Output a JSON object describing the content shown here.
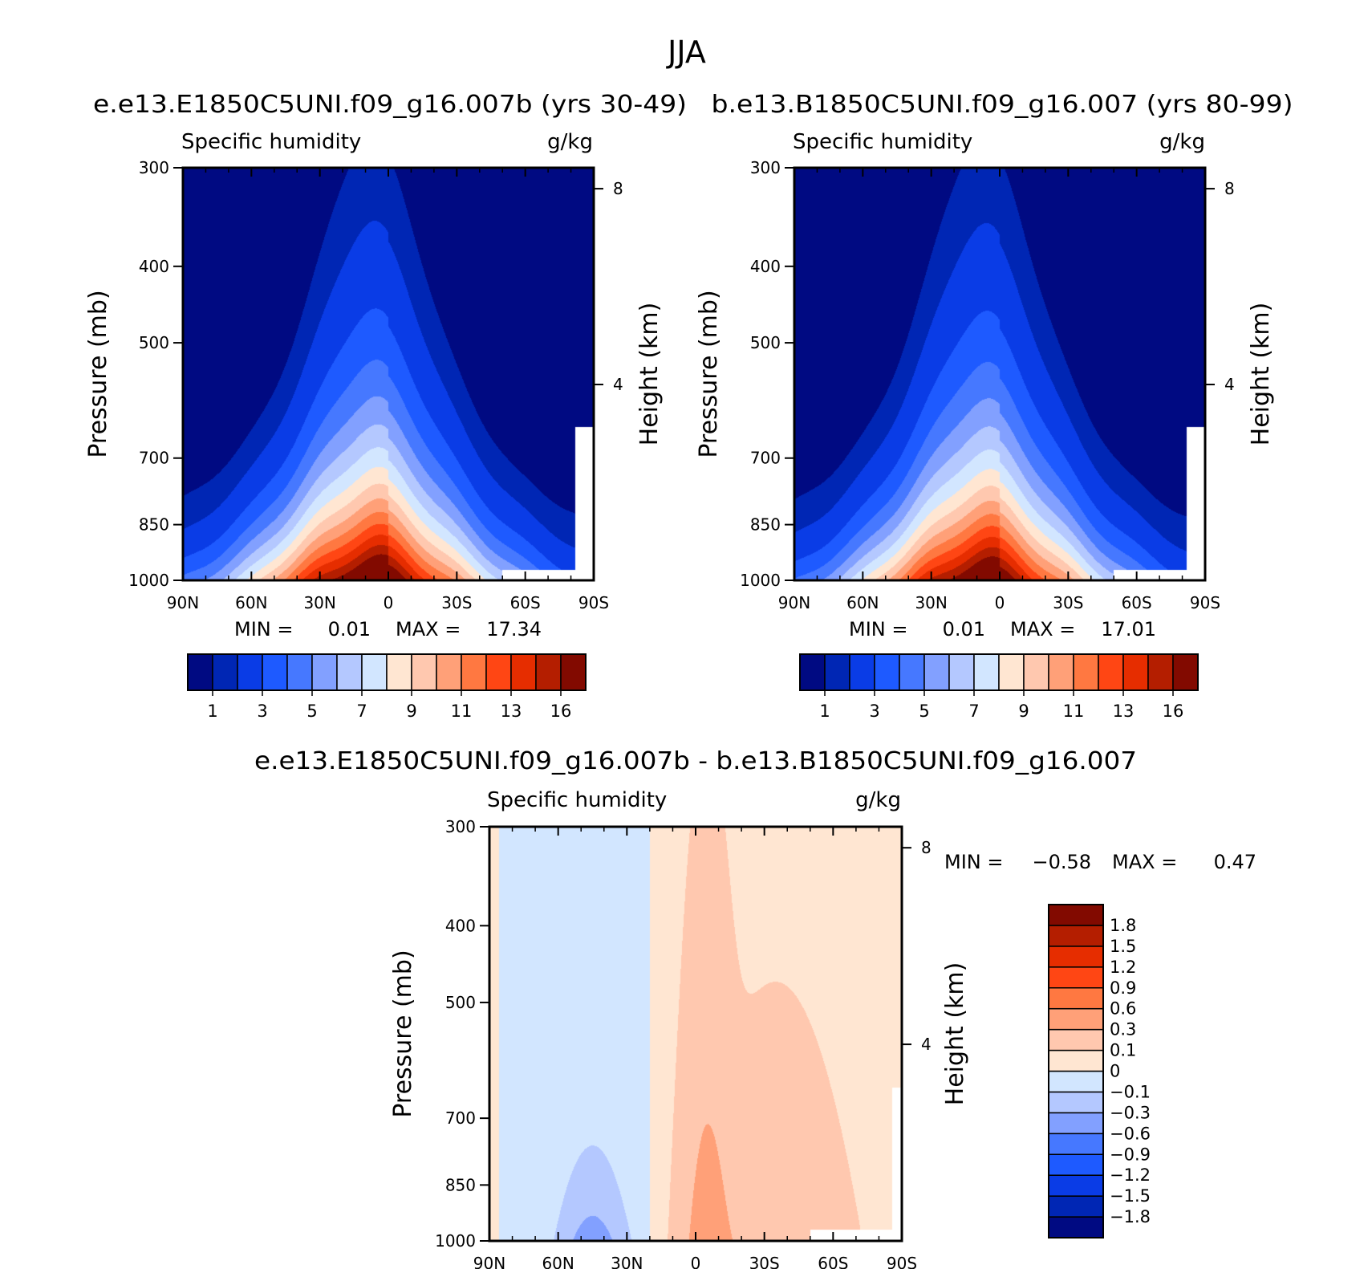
{
  "figure": {
    "title": "JJA"
  },
  "colors": {
    "abs_palette": [
      "#000a82",
      "#0026b4",
      "#0a3ce6",
      "#1e5aff",
      "#4678ff",
      "#82a0ff",
      "#b4c8ff",
      "#d2e6ff",
      "#ffe6d2",
      "#ffc8af",
      "#ffa078",
      "#ff7841",
      "#ff4614",
      "#e62d00",
      "#b41e00",
      "#820a00"
    ],
    "diff_palette": [
      "#000a82",
      "#0026b4",
      "#0a3ce6",
      "#1e5aff",
      "#4678ff",
      "#82a0ff",
      "#b4c8ff",
      "#d2e6ff",
      "#ffe6d2",
      "#ffc8af",
      "#ffa078",
      "#ff7841",
      "#ff4614",
      "#e62d00",
      "#b41e00",
      "#820a00"
    ],
    "missing": "#ffffff"
  },
  "chart_data": [
    {
      "id": "panel1",
      "type": "heatmap",
      "panel_title": "e.e13.E1850C5UNI.f09_g16.007b (yrs 30-49)",
      "left_title": "Specific humidity",
      "right_title": "g/kg",
      "xlabel": "",
      "ylabel": "Pressure (mb)",
      "y2label": "Height (km)",
      "x_ticks": [
        "90N",
        "60N",
        "30N",
        "0",
        "30S",
        "60S",
        "90S"
      ],
      "x_tick_values": [
        90,
        60,
        30,
        0,
        -30,
        -60,
        -90
      ],
      "xlim": [
        90,
        -90
      ],
      "y_ticks": [
        "300",
        "400",
        "500",
        "700",
        "850",
        "1000"
      ],
      "y_tick_values": [
        300,
        400,
        500,
        700,
        850,
        1000
      ],
      "ylim": [
        1000,
        300
      ],
      "y_scale": "log",
      "y2_ticks": [
        "8",
        "4"
      ],
      "y2_tick_values": [
        8,
        4
      ],
      "min_text": "MIN =",
      "min_value": "0.01",
      "max_text": "MAX =",
      "max_value": "17.34",
      "colorbar": {
        "orientation": "horizontal",
        "levels": [
          0.5,
          1,
          2,
          3,
          4,
          5,
          6,
          7,
          8,
          9,
          10,
          11,
          12,
          13,
          14,
          16
        ],
        "labels": [
          "1",
          "3",
          "5",
          "7",
          "9",
          "11",
          "13",
          "16"
        ]
      },
      "field": {
        "peak_value": 17.3,
        "peak_lat": 8,
        "peak_pressure": 1000,
        "surface_scale_height_km": 2.6,
        "width_deg_at_surface": 45,
        "width_deg_aloft": 13,
        "missing_south_of_lat": -82
      }
    },
    {
      "id": "panel2",
      "type": "heatmap",
      "panel_title": "b.e13.B1850C5UNI.f09_g16.007 (yrs 80-99)",
      "left_title": "Specific humidity",
      "right_title": "g/kg",
      "xlabel": "",
      "ylabel": "Pressure (mb)",
      "y2label": "Height (km)",
      "x_ticks": [
        "90N",
        "60N",
        "30N",
        "0",
        "30S",
        "60S",
        "90S"
      ],
      "x_tick_values": [
        90,
        60,
        30,
        0,
        -30,
        -60,
        -90
      ],
      "xlim": [
        90,
        -90
      ],
      "y_ticks": [
        "300",
        "400",
        "500",
        "700",
        "850",
        "1000"
      ],
      "y_tick_values": [
        300,
        400,
        500,
        700,
        850,
        1000
      ],
      "ylim": [
        1000,
        300
      ],
      "y_scale": "log",
      "y2_ticks": [
        "8",
        "4"
      ],
      "y2_tick_values": [
        8,
        4
      ],
      "min_text": "MIN =",
      "min_value": "0.01",
      "max_text": "MAX =",
      "max_value": "17.01",
      "colorbar": {
        "orientation": "horizontal",
        "levels": [
          0.5,
          1,
          2,
          3,
          4,
          5,
          6,
          7,
          8,
          9,
          10,
          11,
          12,
          13,
          14,
          16
        ],
        "labels": [
          "1",
          "3",
          "5",
          "7",
          "9",
          "11",
          "13",
          "16"
        ]
      },
      "field": {
        "peak_value": 17.0,
        "peak_lat": 8,
        "peak_pressure": 1000,
        "surface_scale_height_km": 2.6,
        "width_deg_at_surface": 44,
        "width_deg_aloft": 13,
        "missing_south_of_lat": -82
      }
    },
    {
      "id": "panel3",
      "type": "heatmap",
      "panel_title": "e.e13.E1850C5UNI.f09_g16.007b - b.e13.B1850C5UNI.f09_g16.007",
      "left_title": "Specific humidity",
      "right_title": "g/kg",
      "xlabel": "",
      "ylabel": "Pressure (mb)",
      "y2label": "Height (km)",
      "x_ticks": [
        "90N",
        "60N",
        "30N",
        "0",
        "30S",
        "60S",
        "90S"
      ],
      "x_tick_values": [
        90,
        60,
        30,
        0,
        -30,
        -60,
        -90
      ],
      "xlim": [
        90,
        -90
      ],
      "y_ticks": [
        "300",
        "400",
        "500",
        "700",
        "850",
        "1000"
      ],
      "y_tick_values": [
        300,
        400,
        500,
        700,
        850,
        1000
      ],
      "ylim": [
        1000,
        300
      ],
      "y_scale": "log",
      "y2_ticks": [
        "8",
        "4"
      ],
      "y2_tick_values": [
        8,
        4
      ],
      "min_text": "MIN =",
      "min_value": "-0.58",
      "max_text": "MAX =",
      "max_value": "0.47",
      "colorbar": {
        "orientation": "vertical",
        "levels": [
          -1.8,
          -1.5,
          -1.2,
          -0.9,
          -0.6,
          -0.3,
          -0.1,
          0,
          0.1,
          0.3,
          0.6,
          0.9,
          1.2,
          1.5,
          1.8
        ],
        "labels": [
          "-1.8",
          "-1.5",
          "-1.2",
          "-0.9",
          "-0.6",
          "-0.3",
          "-0.1",
          "0",
          "0.1",
          "0.3",
          "0.6",
          "0.9",
          "1.2",
          "1.5",
          "1.8"
        ]
      },
      "field": {
        "min_value": -0.58,
        "max_value": 0.47,
        "negative_lat_range": [
          85,
          20
        ],
        "positive_center_lat": -5,
        "missing_south_of_lat": -86
      }
    }
  ]
}
